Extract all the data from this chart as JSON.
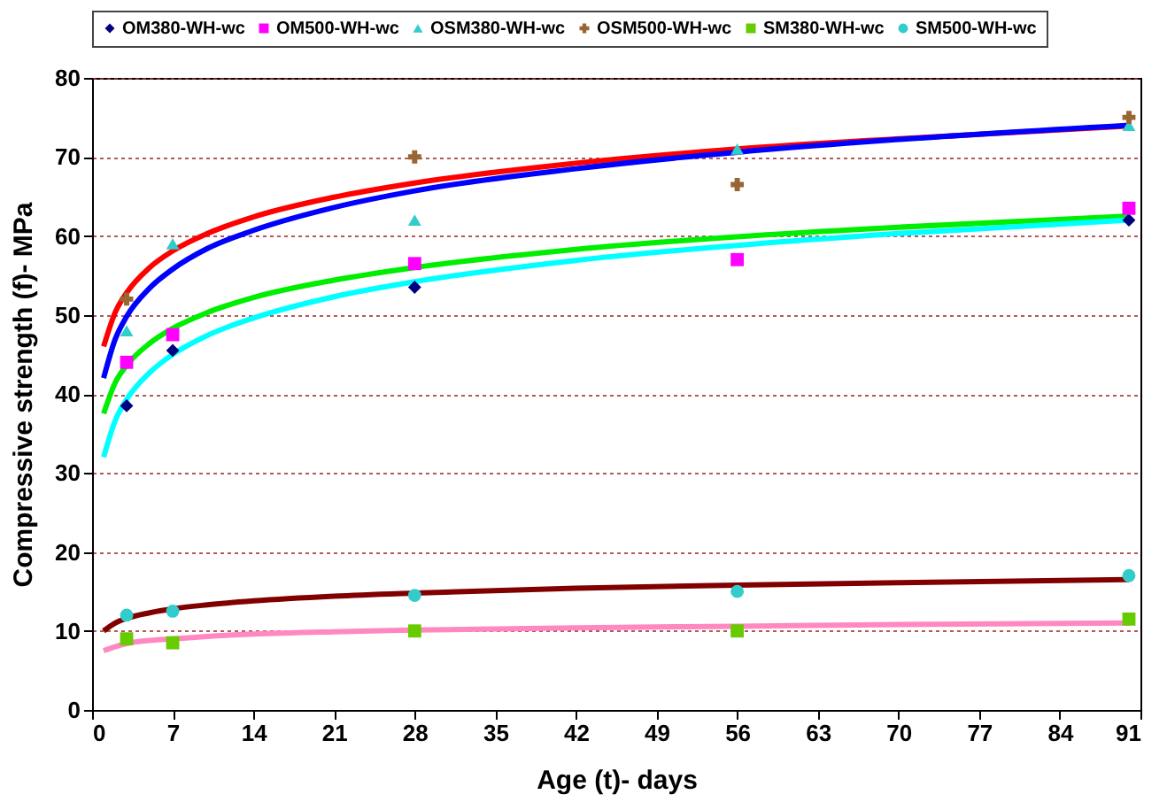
{
  "chart_data": {
    "type": "scatter",
    "xlabel": "Age (t)- days",
    "ylabel": "Compressive strength (f)- MPa",
    "xlim": [
      0,
      91
    ],
    "xticks": [
      0,
      7,
      14,
      21,
      28,
      35,
      42,
      49,
      56,
      63,
      70,
      77,
      84,
      91
    ],
    "ylim": [
      0,
      80
    ],
    "yticks": [
      0,
      10,
      20,
      30,
      40,
      50,
      60,
      70,
      80
    ],
    "grid": "y",
    "legend": "top",
    "series": [
      {
        "name": "OM380-WH-wc",
        "color": "#000080",
        "marker": "diamond",
        "x": [
          3,
          7,
          28,
          56,
          90
        ],
        "values": [
          38.5,
          45.5,
          53.5,
          null,
          62
        ]
      },
      {
        "name": "OM500-WH-wc",
        "color": "#ff00ff",
        "marker": "square",
        "x": [
          3,
          7,
          28,
          56,
          90
        ],
        "values": [
          44,
          47.5,
          56.5,
          57,
          63.5
        ]
      },
      {
        "name": "OSM380-WH-wc",
        "color": "#33cccc",
        "marker": "triangle",
        "x": [
          3,
          7,
          28,
          56,
          90
        ],
        "values": [
          48,
          59,
          62,
          71,
          74
        ]
      },
      {
        "name": "OSM500-WH-wc",
        "color": "#996633",
        "marker": "cross",
        "x": [
          3,
          7,
          28,
          56,
          90
        ],
        "values": [
          52,
          null,
          70,
          66.5,
          75
        ]
      },
      {
        "name": "SM380-WH-wc",
        "color": "#66cc00",
        "marker": "square",
        "x": [
          3,
          7,
          28,
          56,
          90
        ],
        "values": [
          9,
          8.5,
          10,
          10,
          11.5
        ]
      },
      {
        "name": "SM500-WH-wc",
        "color": "#33cccc",
        "marker": "circle",
        "x": [
          3,
          7,
          28,
          56,
          90
        ],
        "values": [
          12,
          12.5,
          14.5,
          15,
          17
        ]
      },
      {
        "type": "line",
        "color": "#ff0000",
        "x": [
          1,
          2,
          3,
          5,
          7,
          10,
          14,
          21,
          28,
          42,
          56,
          70,
          90
        ],
        "values": [
          46,
          50.3,
          52.8,
          56.0,
          58.1,
          60.3,
          62.4,
          64.9,
          66.7,
          69.2,
          71.0,
          72.3,
          73.9
        ]
      },
      {
        "type": "line",
        "color": "#0000ff",
        "x": [
          1,
          2,
          3,
          5,
          7,
          10,
          14,
          21,
          28,
          42,
          56,
          70,
          90
        ],
        "values": [
          42,
          46.9,
          49.8,
          53.4,
          55.8,
          58.4,
          60.7,
          63.6,
          65.7,
          68.5,
          70.6,
          72.2,
          74.0
        ]
      },
      {
        "type": "line",
        "color": "#00ee00",
        "x": [
          1,
          2,
          3,
          5,
          7,
          10,
          14,
          21,
          28,
          42,
          56,
          70,
          90
        ],
        "values": [
          37.5,
          41.4,
          43.6,
          46.4,
          48.3,
          50.3,
          52.2,
          54.4,
          56.0,
          58.3,
          59.9,
          61.1,
          62.5
        ]
      },
      {
        "type": "line",
        "color": "#00ffff",
        "x": [
          1,
          2,
          3,
          5,
          7,
          10,
          14,
          21,
          28,
          42,
          56,
          70,
          90
        ],
        "values": [
          32,
          36.6,
          39.3,
          42.7,
          45.0,
          47.4,
          49.6,
          52.3,
          54.2,
          56.9,
          58.8,
          60.3,
          62.0
        ]
      },
      {
        "type": "line",
        "color": "#800000",
        "x": [
          1,
          2,
          3,
          5,
          7,
          10,
          14,
          21,
          28,
          42,
          56,
          70,
          90
        ],
        "values": [
          10,
          11.0,
          11.6,
          12.3,
          12.8,
          13.3,
          13.8,
          14.4,
          14.8,
          15.4,
          15.8,
          16.1,
          16.5
        ]
      },
      {
        "type": "line",
        "color": "#ff88c0",
        "x": [
          1,
          2,
          3,
          5,
          7,
          10,
          14,
          21,
          28,
          42,
          56,
          70,
          90
        ],
        "values": [
          7.5,
          8.0,
          8.4,
          8.8,
          9.0,
          9.3,
          9.6,
          9.9,
          10.1,
          10.4,
          10.6,
          10.8,
          11.0
        ]
      }
    ]
  }
}
